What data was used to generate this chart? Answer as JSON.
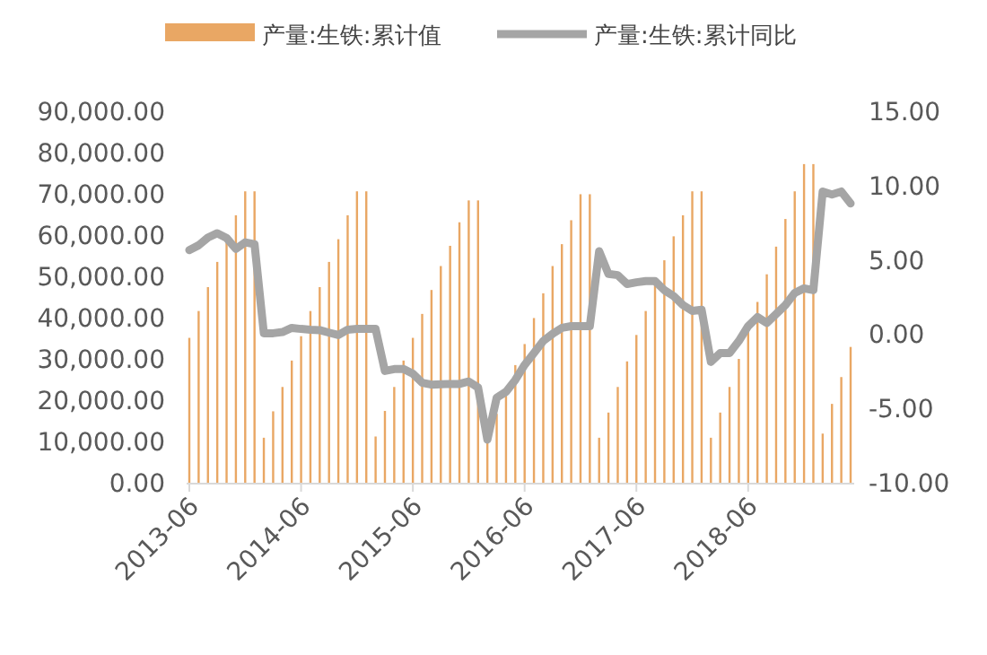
{
  "chart_data": {
    "type": "bar",
    "x": [
      "2013-06",
      "2013-07",
      "2013-08",
      "2013-09",
      "2013-10",
      "2013-11",
      "2013-12",
      "2014-01",
      "2014-02",
      "2014-03",
      "2014-04",
      "2014-05",
      "2014-06",
      "2014-07",
      "2014-08",
      "2014-09",
      "2014-10",
      "2014-11",
      "2014-12",
      "2015-01",
      "2015-02",
      "2015-03",
      "2015-04",
      "2015-05",
      "2015-06",
      "2015-07",
      "2015-08",
      "2015-09",
      "2015-10",
      "2015-11",
      "2015-12",
      "2016-01",
      "2016-02",
      "2016-03",
      "2016-04",
      "2016-05",
      "2016-06",
      "2016-07",
      "2016-08",
      "2016-09",
      "2016-10",
      "2016-11",
      "2016-12",
      "2017-01",
      "2017-02",
      "2017-03",
      "2017-04",
      "2017-05",
      "2017-06",
      "2017-07",
      "2017-08",
      "2017-09",
      "2017-10",
      "2017-11",
      "2017-12",
      "2018-01",
      "2018-02",
      "2018-03",
      "2018-04",
      "2018-05",
      "2018-06",
      "2018-07",
      "2018-08",
      "2018-09",
      "2018-10",
      "2018-11",
      "2018-12",
      "2019-01",
      "2019-02",
      "2019-03",
      "2019-04",
      "2019-05"
    ],
    "series": [
      {
        "name": "产量:生铁:累计值",
        "color": "#e9a764",
        "values": [
          35100,
          41600,
          47400,
          53500,
          59000,
          64800,
          70600,
          70600,
          10900,
          17300,
          23200,
          29600,
          35500,
          41600,
          47400,
          53500,
          59000,
          64800,
          70600,
          70600,
          11200,
          17400,
          23200,
          29600,
          35100,
          40900,
          46700,
          52500,
          57400,
          63100,
          68400,
          68400,
          10600,
          16700,
          22800,
          28500,
          33600,
          39900,
          45900,
          52500,
          57800,
          63600,
          69900,
          69900,
          10900,
          17000,
          23200,
          29400,
          35800,
          41600,
          48100,
          53900,
          59700,
          64800,
          70600,
          70600,
          10900,
          17000,
          23200,
          30000,
          37000,
          43800,
          50500,
          57200,
          63900,
          70600,
          77200,
          77200,
          11900,
          19100,
          25600,
          32900
        ]
      },
      {
        "name": "产量:生铁:累计同比",
        "type": "line",
        "axis": "y2",
        "color": "#a5a5a5",
        "values": [
          5.66,
          5.98,
          6.5,
          6.79,
          6.47,
          5.74,
          6.18,
          6.06,
          0.06,
          0.06,
          0.14,
          0.42,
          0.35,
          0.3,
          0.27,
          0.1,
          -0.06,
          0.3,
          0.35,
          0.35,
          0.35,
          -2.48,
          -2.35,
          -2.35,
          -2.67,
          -3.27,
          -3.4,
          -3.38,
          -3.35,
          -3.35,
          -3.19,
          -3.59,
          -7.1,
          -4.28,
          -3.88,
          -3.08,
          -2.07,
          -1.27,
          -0.46,
          0.02,
          0.42,
          0.54,
          0.54,
          0.54,
          5.58,
          4.05,
          3.97,
          3.37,
          3.49,
          3.57,
          3.57,
          2.96,
          2.56,
          1.96,
          1.56,
          1.64,
          -1.87,
          -1.27,
          -1.27,
          -0.46,
          0.54,
          1.15,
          0.75,
          1.35,
          1.96,
          2.77,
          3.08,
          2.96,
          9.6,
          9.4,
          9.6,
          8.8
        ]
      }
    ],
    "xlim": [
      "2013-06",
      "2019-05"
    ],
    "xticks": [
      "2013-06",
      "2014-06",
      "2015-06",
      "2016-06",
      "2017-06",
      "2018-06"
    ],
    "ylim": [
      0,
      90000
    ],
    "yticks": [
      {
        "value": 0,
        "label": "0.00"
      },
      {
        "value": 10000,
        "label": "10,000.00"
      },
      {
        "value": 20000,
        "label": "20,000.00"
      },
      {
        "value": 30000,
        "label": "30,000.00"
      },
      {
        "value": 40000,
        "label": "40,000.00"
      },
      {
        "value": 50000,
        "label": "50,000.00"
      },
      {
        "value": 60000,
        "label": "60,000.00"
      },
      {
        "value": 70000,
        "label": "70,000.00"
      },
      {
        "value": 80000,
        "label": "80,000.00"
      },
      {
        "value": 90000,
        "label": "90,000.00"
      }
    ],
    "y2lim": [
      -10,
      15
    ],
    "y2ticks": [
      {
        "value": -10,
        "label": "-10.00"
      },
      {
        "value": -5,
        "label": "-5.00"
      },
      {
        "value": 0,
        "label": "0.00"
      },
      {
        "value": 5,
        "label": "5.00"
      },
      {
        "value": 10,
        "label": "10.00"
      },
      {
        "value": 15,
        "label": "15.00"
      }
    ],
    "legend": "top"
  }
}
